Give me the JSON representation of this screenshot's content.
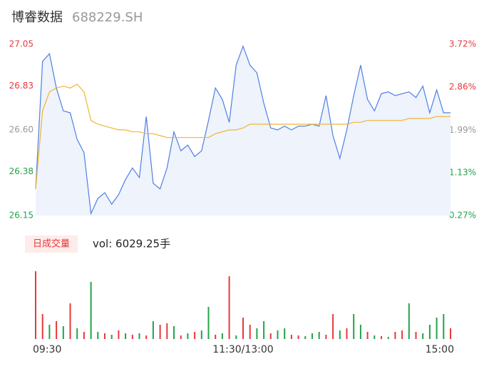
{
  "chart_data": [
    {
      "type": "line",
      "title": "博睿数据",
      "subtitle": "688229.SH",
      "x": [
        0,
        4,
        8,
        12,
        16,
        20,
        24,
        28,
        32,
        36,
        40,
        44,
        48,
        52,
        56,
        60,
        64,
        68,
        72,
        76,
        80,
        84,
        88,
        92,
        96,
        100,
        104,
        108,
        112,
        116,
        120,
        124,
        128,
        132,
        136,
        140,
        144,
        148,
        152,
        156,
        160,
        164,
        168,
        172,
        176,
        180,
        184,
        188,
        192,
        196,
        200,
        204,
        208,
        212,
        216,
        220,
        224,
        228,
        232,
        236,
        240
      ],
      "xlim": [
        0,
        240
      ],
      "xticks": [
        {
          "value": 0,
          "label": "09:30"
        },
        {
          "value": 120,
          "label": "11:30/13:00"
        },
        {
          "value": 240,
          "label": "15:00"
        }
      ],
      "series": [
        {
          "color": "#4f7fe3",
          "fill": "#eef3fc",
          "values": [
            26.29,
            26.96,
            27.0,
            26.82,
            26.7,
            26.69,
            26.55,
            26.48,
            26.16,
            26.24,
            26.27,
            26.21,
            26.26,
            26.34,
            26.4,
            26.35,
            26.67,
            26.32,
            26.29,
            26.4,
            26.59,
            26.49,
            26.52,
            26.46,
            26.49,
            26.65,
            26.82,
            26.76,
            26.64,
            26.94,
            27.04,
            26.94,
            26.9,
            26.74,
            26.61,
            26.6,
            26.62,
            26.6,
            26.62,
            26.62,
            26.63,
            26.62,
            26.78,
            26.57,
            26.45,
            26.6,
            26.78,
            26.94,
            26.76,
            26.7,
            26.79,
            26.8,
            26.78,
            26.79,
            26.8,
            26.77,
            26.83,
            26.69,
            26.81,
            26.69,
            26.69
          ]
        },
        {
          "color": "#f2b431",
          "values": [
            26.29,
            26.7,
            26.8,
            26.82,
            26.83,
            26.82,
            26.84,
            26.8,
            26.65,
            26.63,
            26.62,
            26.61,
            26.6,
            26.6,
            26.59,
            26.59,
            26.58,
            26.58,
            26.57,
            26.56,
            26.56,
            26.56,
            26.56,
            26.56,
            26.56,
            26.56,
            26.58,
            26.59,
            26.6,
            26.6,
            26.61,
            26.63,
            26.63,
            26.63,
            26.63,
            26.63,
            26.63,
            26.63,
            26.63,
            26.63,
            26.63,
            26.63,
            26.63,
            26.63,
            26.63,
            26.63,
            26.64,
            26.64,
            26.65,
            26.65,
            26.65,
            26.65,
            26.65,
            26.65,
            26.66,
            26.66,
            26.66,
            26.66,
            26.67,
            26.67,
            26.67
          ]
        }
      ],
      "ylim": [
        26.15,
        27.05
      ],
      "yticks": [
        27.05,
        26.83,
        {
          "value": 26.6,
          "label": "26.60"
        },
        26.38,
        26.15
      ],
      "y2lim": [
        0.27,
        3.72
      ],
      "y2ticks": [
        {
          "value": 3.72,
          "label": "3.72%"
        },
        {
          "value": 2.86,
          "label": "2.86%"
        },
        {
          "value": 1.99,
          "label": "1.99%"
        },
        {
          "value": 1.13,
          "label": "1.13%"
        },
        {
          "value": 0.27,
          "label": "0.27%"
        }
      ],
      "tick_colors": [
        "#e8383a",
        "#e8383a",
        "#999999",
        "#22a34a",
        "#22a34a"
      ]
    },
    {
      "type": "bar",
      "legend_label": "日成交量",
      "annotation": "vol: 6029.25手",
      "x": [
        0,
        4,
        8,
        12,
        16,
        20,
        24,
        28,
        32,
        36,
        40,
        44,
        48,
        52,
        56,
        60,
        64,
        68,
        72,
        76,
        80,
        84,
        88,
        92,
        96,
        100,
        104,
        108,
        112,
        116,
        120,
        124,
        128,
        132,
        136,
        140,
        144,
        148,
        152,
        156,
        160,
        164,
        168,
        172,
        176,
        180,
        184,
        188,
        192,
        196,
        200,
        204,
        208,
        212,
        216,
        220,
        224,
        228,
        232,
        236,
        240
      ],
      "xlim": [
        0,
        240
      ],
      "values": [
        95,
        35,
        20,
        25,
        18,
        50,
        15,
        10,
        80,
        10,
        8,
        6,
        12,
        8,
        6,
        8,
        5,
        25,
        20,
        22,
        18,
        5,
        8,
        10,
        12,
        45,
        6,
        8,
        88,
        5,
        30,
        20,
        15,
        25,
        8,
        12,
        15,
        6,
        5,
        4,
        8,
        10,
        6,
        35,
        12,
        15,
        35,
        20,
        10,
        5,
        4,
        3,
        10,
        12,
        50,
        10,
        8,
        20,
        30,
        35,
        15
      ],
      "colors": [
        "#e8383a",
        "#e8383a",
        "#22a34a",
        "#e8383a",
        "#22a34a",
        "#e8383a",
        "#22a34a",
        "#e8383a",
        "#22a34a",
        "#22a34a",
        "#e8383a",
        "#22a34a",
        "#e8383a",
        "#22a34a",
        "#e8383a",
        "#22a34a",
        "#e8383a",
        "#22a34a",
        "#e8383a",
        "#e8383a",
        "#22a34a",
        "#e8383a",
        "#22a34a",
        "#e8383a",
        "#22a34a",
        "#22a34a",
        "#e8383a",
        "#22a34a",
        "#e8383a",
        "#22a34a",
        "#e8383a",
        "#e8383a",
        "#22a34a",
        "#22a34a",
        "#e8383a",
        "#22a34a",
        "#22a34a",
        "#e8383a",
        "#e8383a",
        "#22a34a",
        "#22a34a",
        "#22a34a",
        "#e8383a",
        "#e8383a",
        "#22a34a",
        "#e8383a",
        "#22a34a",
        "#22a34a",
        "#e8383a",
        "#22a34a",
        "#e8383a",
        "#22a34a",
        "#e8383a",
        "#e8383a",
        "#22a34a",
        "#e8383a",
        "#22a34a",
        "#22a34a",
        "#22a34a",
        "#22a34a",
        "#e8383a"
      ],
      "ylim": [
        0,
        100
      ],
      "legend_color": "#e8383a",
      "legend_bg": "#fdecea"
    }
  ]
}
